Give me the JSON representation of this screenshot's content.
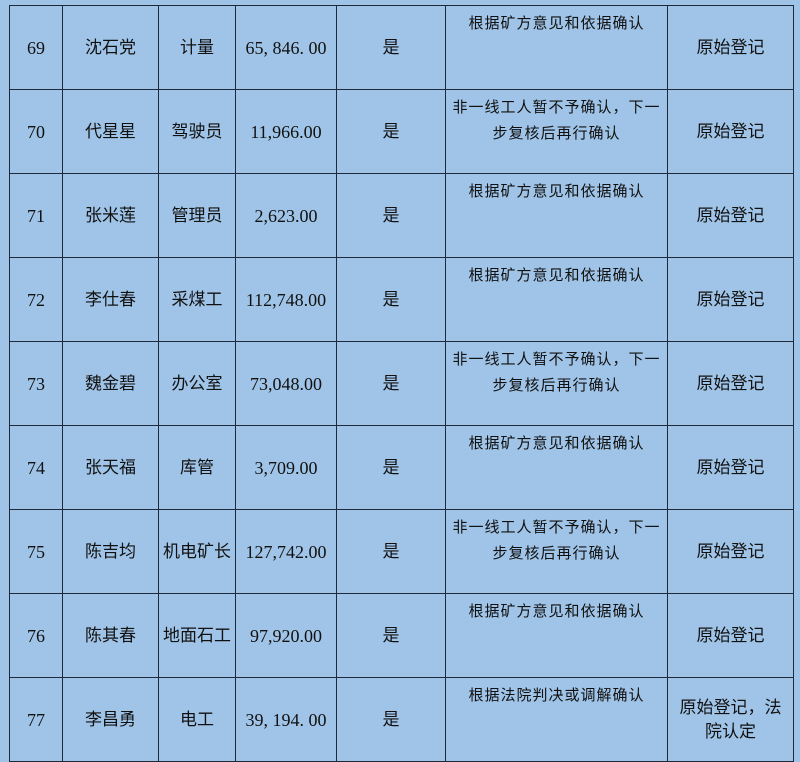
{
  "rows": [
    {
      "no": "69",
      "name": "沈石党",
      "job": "计量",
      "amount": "65, 846. 00",
      "flag": "是",
      "note": "根据矿方意见和依据确认",
      "result": "原始登记"
    },
    {
      "no": "70",
      "name": "代星星",
      "job": "驾驶员",
      "amount": "11,966.00",
      "flag": "是",
      "note": "非一线工人暂不予确认，下一步复核后再行确认",
      "result": "原始登记"
    },
    {
      "no": "71",
      "name": "张米莲",
      "job": "管理员",
      "amount": "2,623.00",
      "flag": "是",
      "note": "根据矿方意见和依据确认",
      "result": "原始登记"
    },
    {
      "no": "72",
      "name": "李仕春",
      "job": "采煤工",
      "amount": "112,748.00",
      "flag": "是",
      "note": "根据矿方意见和依据确认",
      "result": "原始登记"
    },
    {
      "no": "73",
      "name": "魏金碧",
      "job": "办公室",
      "amount": "73,048.00",
      "flag": "是",
      "note": "非一线工人暂不予确认，下一步复核后再行确认",
      "result": "原始登记"
    },
    {
      "no": "74",
      "name": "张天福",
      "job": "库管",
      "amount": "3,709.00",
      "flag": "是",
      "note": "根据矿方意见和依据确认",
      "result": "原始登记"
    },
    {
      "no": "75",
      "name": "陈吉均",
      "job": "机电矿长",
      "amount": "127,742.00",
      "flag": "是",
      "note": "非一线工人暂不予确认，下一步复核后再行确认",
      "result": "原始登记"
    },
    {
      "no": "76",
      "name": "陈其春",
      "job": "地面石工",
      "amount": "97,920.00",
      "flag": "是",
      "note": "根据矿方意见和依据确认",
      "result": "原始登记"
    },
    {
      "no": "77",
      "name": "李昌勇",
      "job": "电工",
      "amount": "39, 194. 00",
      "flag": "是",
      "note": "根据法院判决或调解确认",
      "result": "原始登记，法院认定"
    }
  ]
}
